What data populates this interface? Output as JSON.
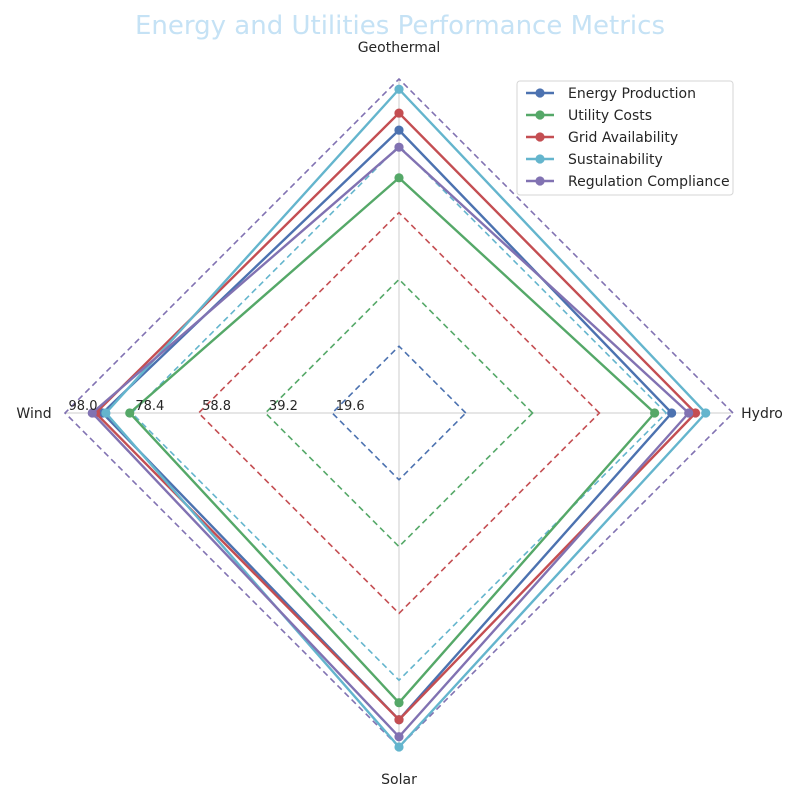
{
  "chart_data": {
    "type": "radar",
    "title": "Energy and Utilities Performance Metrics",
    "title_color": "#c5e2f5",
    "categories": [
      "Hydro",
      "Geothermal",
      "Wind",
      "Solar"
    ],
    "rmax": 98.0,
    "radial_ticks": [
      "19.6",
      "39.2",
      "58.8",
      "78.4",
      "98.0"
    ],
    "radial_tick_values": [
      19.6,
      39.2,
      58.8,
      78.4,
      98.0
    ],
    "grid": true,
    "legend_position": "top-right",
    "series": [
      {
        "name": "Energy Production",
        "color": "#4c72b0",
        "values": [
          80,
          83,
          87,
          90
        ]
      },
      {
        "name": "Utility Costs",
        "color": "#55a868",
        "values": [
          75,
          69,
          79,
          85
        ]
      },
      {
        "name": "Grid Availability",
        "color": "#c44e52",
        "values": [
          87,
          88,
          89,
          90
        ]
      },
      {
        "name": "Sustainability",
        "color": "#64b5cd",
        "values": [
          90,
          95,
          86,
          98
        ]
      },
      {
        "name": "Regulation Compliance",
        "color": "#8172b2",
        "values": [
          85,
          78,
          90,
          95
        ]
      }
    ]
  }
}
